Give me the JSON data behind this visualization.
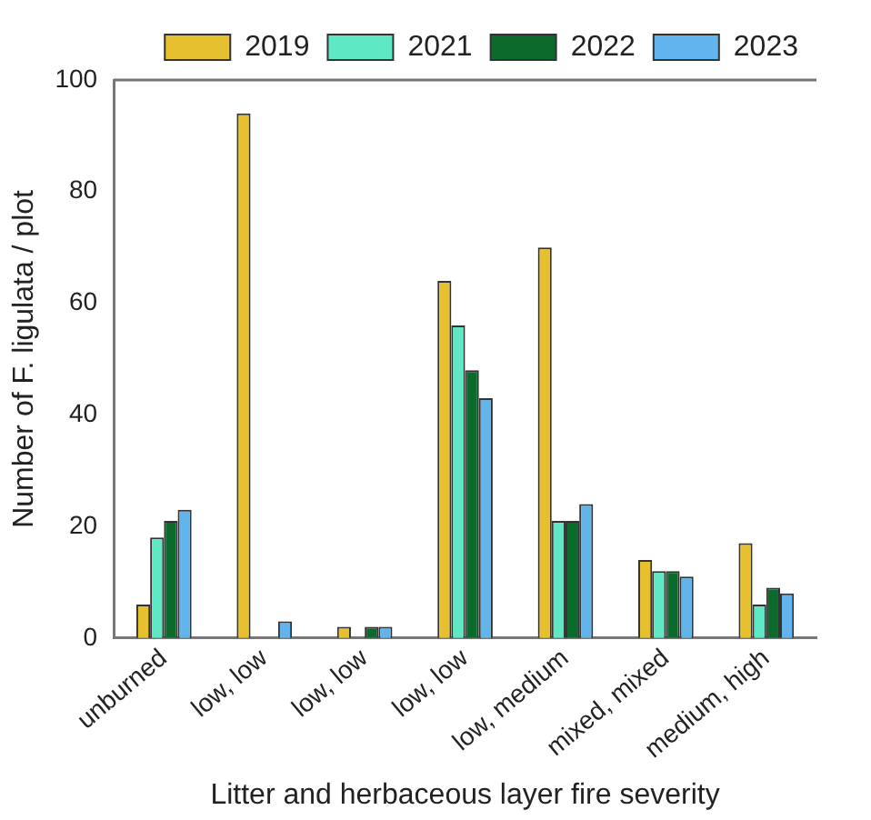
{
  "chart_data": {
    "type": "bar",
    "xlabel": "Litter and herbaceous layer fire severity",
    "ylabel": "Number of F. ligulata / plot",
    "categories": [
      "unburned",
      "low, low",
      "low, low",
      "low, low",
      "low, medium",
      "mixed, mixed",
      "medium, high"
    ],
    "series": [
      {
        "name": "2019",
        "color": "#e6c02e",
        "values": [
          6,
          94,
          2,
          64,
          70,
          14,
          17
        ]
      },
      {
        "name": "2021",
        "color": "#5ee8c4",
        "values": [
          18,
          0,
          0,
          56,
          21,
          12,
          6
        ]
      },
      {
        "name": "2022",
        "color": "#0a6b2c",
        "values": [
          21,
          0,
          2,
          48,
          21,
          12,
          9
        ]
      },
      {
        "name": "2023",
        "color": "#62b4ec",
        "values": [
          23,
          3,
          2,
          43,
          24,
          11,
          8
        ]
      }
    ],
    "ylim": [
      0,
      100
    ],
    "yticks": [
      0,
      20,
      40,
      60,
      80,
      100
    ],
    "grid": false,
    "legend": "top right"
  }
}
